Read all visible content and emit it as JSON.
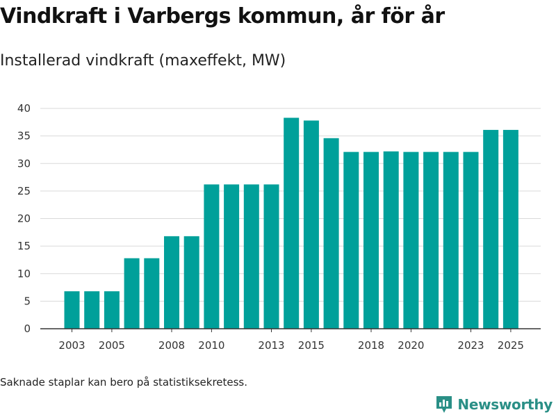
{
  "header": {
    "title": "Vindkraft i Varbergs kommun, år för år",
    "subtitle": "Installerad vindkraft (maxeffekt, MW)"
  },
  "footer": {
    "note": "Saknade staplar kan bero på statistiksekretess.",
    "brand": "Newsworthy"
  },
  "colors": {
    "bar": "#00a09a",
    "grid": "#d9d9d9",
    "axis": "#333333",
    "brand": "#2a8f86"
  },
  "chart_data": {
    "type": "bar",
    "title": "Vindkraft i Varbergs kommun, år för år",
    "subtitle": "Installerad vindkraft (maxeffekt, MW)",
    "xlabel": "",
    "ylabel": "",
    "categories": [
      "2003",
      "2004",
      "2005",
      "2006",
      "2007",
      "2008",
      "2009",
      "2010",
      "2011",
      "2012",
      "2013",
      "2014",
      "2015",
      "2016",
      "2017",
      "2018",
      "2019",
      "2020",
      "2021",
      "2022",
      "2023",
      "2024",
      "2025"
    ],
    "values": [
      6.8,
      6.8,
      6.8,
      12.8,
      12.8,
      16.8,
      16.8,
      26.2,
      26.2,
      26.2,
      26.2,
      38.3,
      37.8,
      34.6,
      32.1,
      32.1,
      32.2,
      32.1,
      32.1,
      32.1,
      32.1,
      36.1,
      36.1
    ],
    "x_tick_labels": [
      "2003",
      "2005",
      "2008",
      "2010",
      "2013",
      "2015",
      "2018",
      "2020",
      "2023",
      "2025"
    ],
    "y_ticks": [
      0,
      5,
      10,
      15,
      20,
      25,
      30,
      35,
      40
    ],
    "ylim": [
      0,
      40
    ],
    "grid": true,
    "legend": "none"
  }
}
